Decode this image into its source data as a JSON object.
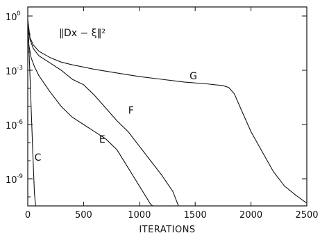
{
  "chart_data": {
    "type": "line",
    "title": "",
    "annotation": "‖Dx − ξ‖²",
    "xlabel": "ITERATIONS",
    "ylabel": "",
    "xlim": [
      0,
      2500
    ],
    "ylim_log10": [
      -10.5,
      0.5
    ],
    "y_scale": "log",
    "grid": false,
    "x_ticks": [
      {
        "value": 0,
        "label": "0"
      },
      {
        "value": 500,
        "label": "500"
      },
      {
        "value": 1000,
        "label": "1000"
      },
      {
        "value": 1500,
        "label": "1500"
      },
      {
        "value": 2000,
        "label": "2000"
      },
      {
        "value": 2500,
        "label": "2500"
      }
    ],
    "y_ticks": [
      {
        "exponent": 0,
        "base": "10",
        "exp_label": "0"
      },
      {
        "exponent": -3,
        "base": "10",
        "exp_label": "-3"
      },
      {
        "exponent": -6,
        "base": "10",
        "exp_label": "-6"
      },
      {
        "exponent": -9,
        "base": "10",
        "exp_label": "-9"
      }
    ],
    "series": [
      {
        "name": "C",
        "label_at": {
          "x": 60,
          "log10y": -8.0
        },
        "points": [
          [
            0,
            -0.2
          ],
          [
            15,
            -2.5
          ],
          [
            30,
            -5.0
          ],
          [
            45,
            -7.5
          ],
          [
            60,
            -9.8
          ],
          [
            70,
            -10.6
          ]
        ]
      },
      {
        "name": "E",
        "label_at": {
          "x": 640,
          "log10y": -7.0
        },
        "points": [
          [
            0,
            -0.3
          ],
          [
            10,
            -1.6
          ],
          [
            30,
            -2.3
          ],
          [
            60,
            -2.8
          ],
          [
            100,
            -3.3
          ],
          [
            200,
            -4.2
          ],
          [
            300,
            -5.0
          ],
          [
            400,
            -5.6
          ],
          [
            500,
            -6.0
          ],
          [
            600,
            -6.4
          ],
          [
            700,
            -6.8
          ],
          [
            800,
            -7.4
          ],
          [
            900,
            -8.4
          ],
          [
            1000,
            -9.4
          ],
          [
            1100,
            -10.4
          ],
          [
            1120,
            -10.6
          ]
        ]
      },
      {
        "name": "F",
        "label_at": {
          "x": 900,
          "log10y": -5.4
        },
        "points": [
          [
            0,
            -0.3
          ],
          [
            20,
            -1.3
          ],
          [
            50,
            -1.8
          ],
          [
            100,
            -2.2
          ],
          [
            200,
            -2.6
          ],
          [
            300,
            -3.0
          ],
          [
            400,
            -3.5
          ],
          [
            500,
            -3.8
          ],
          [
            600,
            -4.4
          ],
          [
            700,
            -5.1
          ],
          [
            800,
            -5.8
          ],
          [
            900,
            -6.4
          ],
          [
            1000,
            -7.2
          ],
          [
            1100,
            -8.0
          ],
          [
            1200,
            -8.8
          ],
          [
            1300,
            -9.7
          ],
          [
            1350,
            -10.6
          ]
        ]
      },
      {
        "name": "G",
        "label_at": {
          "x": 1450,
          "log10y": -3.5
        },
        "points": [
          [
            0,
            -0.2
          ],
          [
            20,
            -1.2
          ],
          [
            50,
            -1.6
          ],
          [
            100,
            -1.95
          ],
          [
            200,
            -2.3
          ],
          [
            300,
            -2.55
          ],
          [
            400,
            -2.7
          ],
          [
            600,
            -2.95
          ],
          [
            800,
            -3.15
          ],
          [
            1000,
            -3.35
          ],
          [
            1200,
            -3.5
          ],
          [
            1400,
            -3.65
          ],
          [
            1600,
            -3.75
          ],
          [
            1750,
            -3.85
          ],
          [
            1800,
            -3.95
          ],
          [
            1850,
            -4.3
          ],
          [
            1900,
            -5.0
          ],
          [
            2000,
            -6.4
          ],
          [
            2100,
            -7.5
          ],
          [
            2200,
            -8.6
          ],
          [
            2300,
            -9.4
          ],
          [
            2400,
            -9.9
          ],
          [
            2500,
            -10.35
          ]
        ]
      }
    ]
  }
}
